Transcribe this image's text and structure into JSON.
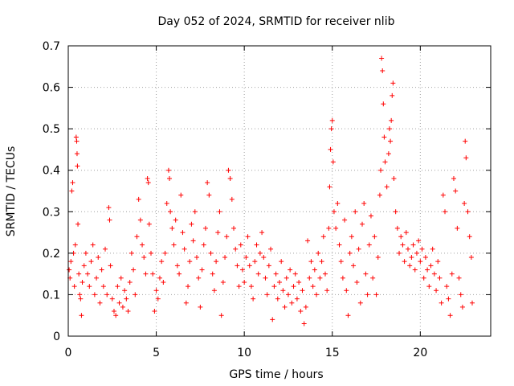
{
  "chart_data": {
    "type": "scatter",
    "title": "Day 052 of 2024, SRMTID for receiver nlib",
    "xlabel": "GPS time / hours",
    "ylabel": "SRMTID / TECUs",
    "xlim": [
      0,
      24
    ],
    "ylim": [
      0,
      0.7
    ],
    "xticks": [
      0,
      5,
      10,
      15,
      20
    ],
    "yticks": [
      0,
      0.1,
      0.2,
      0.3,
      0.4,
      0.5,
      0.6,
      0.7
    ],
    "x_tick_labels": [
      "0",
      "5",
      "10",
      "15",
      "20"
    ],
    "y_tick_labels": [
      "0",
      "0.1",
      "0.2",
      "0.3",
      "0.4",
      "0.5",
      "0.6",
      "0.7"
    ],
    "grid": true,
    "marker": "+",
    "color": "#ff0000",
    "series": [
      {
        "name": "SRMTID",
        "points": [
          [
            0.05,
            0.16
          ],
          [
            0.1,
            0.14
          ],
          [
            0.15,
            0.18
          ],
          [
            0.2,
            0.35
          ],
          [
            0.25,
            0.37
          ],
          [
            0.3,
            0.2
          ],
          [
            0.35,
            0.12
          ],
          [
            0.4,
            0.22
          ],
          [
            0.45,
            0.48
          ],
          [
            0.48,
            0.47
          ],
          [
            0.5,
            0.44
          ],
          [
            0.52,
            0.41
          ],
          [
            0.55,
            0.27
          ],
          [
            0.6,
            0.15
          ],
          [
            0.65,
            0.1
          ],
          [
            0.7,
            0.09
          ],
          [
            0.75,
            0.05
          ],
          [
            0.8,
            0.13
          ],
          [
            0.9,
            0.17
          ],
          [
            1.0,
            0.2
          ],
          [
            1.1,
            0.15
          ],
          [
            1.2,
            0.12
          ],
          [
            1.3,
            0.18
          ],
          [
            1.4,
            0.22
          ],
          [
            1.5,
            0.1
          ],
          [
            1.6,
            0.14
          ],
          [
            1.7,
            0.19
          ],
          [
            1.8,
            0.08
          ],
          [
            1.9,
            0.16
          ],
          [
            2.0,
            0.12
          ],
          [
            2.1,
            0.21
          ],
          [
            2.2,
            0.1
          ],
          [
            2.3,
            0.31
          ],
          [
            2.35,
            0.28
          ],
          [
            2.4,
            0.17
          ],
          [
            2.5,
            0.09
          ],
          [
            2.6,
            0.06
          ],
          [
            2.7,
            0.05
          ],
          [
            2.8,
            0.12
          ],
          [
            2.9,
            0.08
          ],
          [
            3.0,
            0.14
          ],
          [
            3.1,
            0.07
          ],
          [
            3.2,
            0.11
          ],
          [
            3.3,
            0.09
          ],
          [
            3.4,
            0.06
          ],
          [
            3.5,
            0.13
          ],
          [
            3.6,
            0.2
          ],
          [
            3.7,
            0.16
          ],
          [
            3.8,
            0.1
          ],
          [
            3.9,
            0.24
          ],
          [
            4.0,
            0.33
          ],
          [
            4.1,
            0.28
          ],
          [
            4.2,
            0.22
          ],
          [
            4.3,
            0.19
          ],
          [
            4.4,
            0.15
          ],
          [
            4.5,
            0.38
          ],
          [
            4.55,
            0.37
          ],
          [
            4.6,
            0.27
          ],
          [
            4.7,
            0.2
          ],
          [
            4.8,
            0.15
          ],
          [
            4.9,
            0.06
          ],
          [
            5.0,
            0.11
          ],
          [
            5.1,
            0.09
          ],
          [
            5.2,
            0.14
          ],
          [
            5.3,
            0.18
          ],
          [
            5.4,
            0.13
          ],
          [
            5.5,
            0.2
          ],
          [
            5.6,
            0.32
          ],
          [
            5.7,
            0.4
          ],
          [
            5.75,
            0.38
          ],
          [
            5.8,
            0.3
          ],
          [
            5.9,
            0.26
          ],
          [
            6.0,
            0.22
          ],
          [
            6.1,
            0.28
          ],
          [
            6.2,
            0.17
          ],
          [
            6.3,
            0.15
          ],
          [
            6.4,
            0.34
          ],
          [
            6.5,
            0.25
          ],
          [
            6.6,
            0.21
          ],
          [
            6.7,
            0.08
          ],
          [
            6.8,
            0.12
          ],
          [
            6.9,
            0.18
          ],
          [
            7.0,
            0.27
          ],
          [
            7.1,
            0.23
          ],
          [
            7.2,
            0.3
          ],
          [
            7.3,
            0.19
          ],
          [
            7.4,
            0.14
          ],
          [
            7.5,
            0.07
          ],
          [
            7.6,
            0.16
          ],
          [
            7.7,
            0.22
          ],
          [
            7.8,
            0.26
          ],
          [
            7.9,
            0.37
          ],
          [
            8.0,
            0.34
          ],
          [
            8.1,
            0.2
          ],
          [
            8.2,
            0.15
          ],
          [
            8.3,
            0.11
          ],
          [
            8.4,
            0.18
          ],
          [
            8.5,
            0.25
          ],
          [
            8.6,
            0.3
          ],
          [
            8.7,
            0.05
          ],
          [
            8.8,
            0.13
          ],
          [
            8.9,
            0.19
          ],
          [
            9.0,
            0.24
          ],
          [
            9.1,
            0.4
          ],
          [
            9.2,
            0.38
          ],
          [
            9.3,
            0.33
          ],
          [
            9.4,
            0.26
          ],
          [
            9.5,
            0.21
          ],
          [
            9.6,
            0.17
          ],
          [
            9.7,
            0.12
          ],
          [
            9.8,
            0.22
          ],
          [
            9.9,
            0.16
          ],
          [
            10.0,
            0.13
          ],
          [
            10.1,
            0.19
          ],
          [
            10.2,
            0.24
          ],
          [
            10.3,
            0.17
          ],
          [
            10.4,
            0.12
          ],
          [
            10.5,
            0.09
          ],
          [
            10.6,
            0.18
          ],
          [
            10.7,
            0.22
          ],
          [
            10.8,
            0.15
          ],
          [
            10.9,
            0.2
          ],
          [
            11.0,
            0.25
          ],
          [
            11.1,
            0.19
          ],
          [
            11.2,
            0.14
          ],
          [
            11.3,
            0.1
          ],
          [
            11.4,
            0.17
          ],
          [
            11.5,
            0.21
          ],
          [
            11.6,
            0.04
          ],
          [
            11.7,
            0.12
          ],
          [
            11.8,
            0.15
          ],
          [
            11.9,
            0.09
          ],
          [
            12.0,
            0.13
          ],
          [
            12.1,
            0.18
          ],
          [
            12.2,
            0.11
          ],
          [
            12.3,
            0.07
          ],
          [
            12.4,
            0.14
          ],
          [
            12.5,
            0.1
          ],
          [
            12.6,
            0.16
          ],
          [
            12.7,
            0.08
          ],
          [
            12.8,
            0.12
          ],
          [
            12.9,
            0.15
          ],
          [
            13.0,
            0.09
          ],
          [
            13.1,
            0.13
          ],
          [
            13.2,
            0.06
          ],
          [
            13.3,
            0.11
          ],
          [
            13.4,
            0.03
          ],
          [
            13.5,
            0.07
          ],
          [
            13.6,
            0.23
          ],
          [
            13.7,
            0.14
          ],
          [
            13.8,
            0.18
          ],
          [
            13.9,
            0.12
          ],
          [
            14.0,
            0.16
          ],
          [
            14.1,
            0.1
          ],
          [
            14.2,
            0.2
          ],
          [
            14.3,
            0.14
          ],
          [
            14.4,
            0.18
          ],
          [
            14.5,
            0.24
          ],
          [
            14.6,
            0.15
          ],
          [
            14.7,
            0.11
          ],
          [
            14.8,
            0.26
          ],
          [
            14.85,
            0.36
          ],
          [
            14.9,
            0.45
          ],
          [
            14.95,
            0.5
          ],
          [
            15.0,
            0.52
          ],
          [
            15.05,
            0.42
          ],
          [
            15.1,
            0.3
          ],
          [
            15.2,
            0.26
          ],
          [
            15.3,
            0.32
          ],
          [
            15.4,
            0.22
          ],
          [
            15.5,
            0.18
          ],
          [
            15.6,
            0.14
          ],
          [
            15.7,
            0.28
          ],
          [
            15.8,
            0.11
          ],
          [
            15.9,
            0.05
          ],
          [
            16.0,
            0.2
          ],
          [
            16.1,
            0.24
          ],
          [
            16.2,
            0.17
          ],
          [
            16.3,
            0.3
          ],
          [
            16.4,
            0.13
          ],
          [
            16.5,
            0.21
          ],
          [
            16.6,
            0.08
          ],
          [
            16.7,
            0.27
          ],
          [
            16.8,
            0.32
          ],
          [
            16.9,
            0.15
          ],
          [
            17.0,
            0.1
          ],
          [
            17.1,
            0.22
          ],
          [
            17.2,
            0.29
          ],
          [
            17.3,
            0.14
          ],
          [
            17.4,
            0.24
          ],
          [
            17.5,
            0.1
          ],
          [
            17.6,
            0.19
          ],
          [
            17.7,
            0.34
          ],
          [
            17.75,
            0.4
          ],
          [
            17.8,
            0.67
          ],
          [
            17.85,
            0.64
          ],
          [
            17.9,
            0.56
          ],
          [
            17.95,
            0.48
          ],
          [
            18.0,
            0.42
          ],
          [
            18.1,
            0.36
          ],
          [
            18.2,
            0.44
          ],
          [
            18.25,
            0.5
          ],
          [
            18.3,
            0.47
          ],
          [
            18.35,
            0.52
          ],
          [
            18.4,
            0.58
          ],
          [
            18.45,
            0.61
          ],
          [
            18.5,
            0.38
          ],
          [
            18.6,
            0.3
          ],
          [
            18.7,
            0.26
          ],
          [
            18.8,
            0.2
          ],
          [
            18.9,
            0.24
          ],
          [
            19.0,
            0.22
          ],
          [
            19.1,
            0.18
          ],
          [
            19.2,
            0.25
          ],
          [
            19.3,
            0.21
          ],
          [
            19.4,
            0.17
          ],
          [
            19.5,
            0.19
          ],
          [
            19.6,
            0.22
          ],
          [
            19.7,
            0.16
          ],
          [
            19.8,
            0.2
          ],
          [
            19.9,
            0.23
          ],
          [
            20.0,
            0.18
          ],
          [
            20.1,
            0.21
          ],
          [
            20.2,
            0.14
          ],
          [
            20.3,
            0.19
          ],
          [
            20.4,
            0.16
          ],
          [
            20.5,
            0.12
          ],
          [
            20.6,
            0.17
          ],
          [
            20.7,
            0.21
          ],
          [
            20.8,
            0.15
          ],
          [
            20.9,
            0.11
          ],
          [
            21.0,
            0.18
          ],
          [
            21.1,
            0.14
          ],
          [
            21.2,
            0.08
          ],
          [
            21.3,
            0.34
          ],
          [
            21.4,
            0.3
          ],
          [
            21.5,
            0.12
          ],
          [
            21.6,
            0.09
          ],
          [
            21.7,
            0.05
          ],
          [
            21.8,
            0.15
          ],
          [
            21.9,
            0.38
          ],
          [
            22.0,
            0.35
          ],
          [
            22.1,
            0.26
          ],
          [
            22.2,
            0.14
          ],
          [
            22.3,
            0.1
          ],
          [
            22.4,
            0.07
          ],
          [
            22.5,
            0.32
          ],
          [
            22.55,
            0.47
          ],
          [
            22.6,
            0.43
          ],
          [
            22.7,
            0.3
          ],
          [
            22.8,
            0.24
          ],
          [
            22.9,
            0.19
          ],
          [
            22.95,
            0.08
          ]
        ]
      }
    ]
  }
}
